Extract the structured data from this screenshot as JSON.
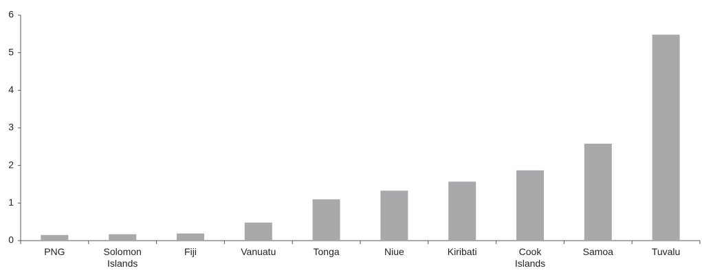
{
  "chart_data": {
    "type": "bar",
    "categories": [
      "PNG",
      "Solomon Islands",
      "Fiji",
      "Vanuatu",
      "Tonga",
      "Niue",
      "Kiribati",
      "Cook Islands",
      "Samoa",
      "Tuvalu"
    ],
    "values": [
      0.15,
      0.17,
      0.19,
      0.48,
      1.1,
      1.33,
      1.57,
      1.87,
      2.58,
      5.48
    ],
    "color": "#a9a9ab",
    "ylim": [
      0,
      6
    ],
    "yticks": [
      0,
      1,
      2,
      3,
      4,
      5,
      6
    ],
    "grid": false
  }
}
